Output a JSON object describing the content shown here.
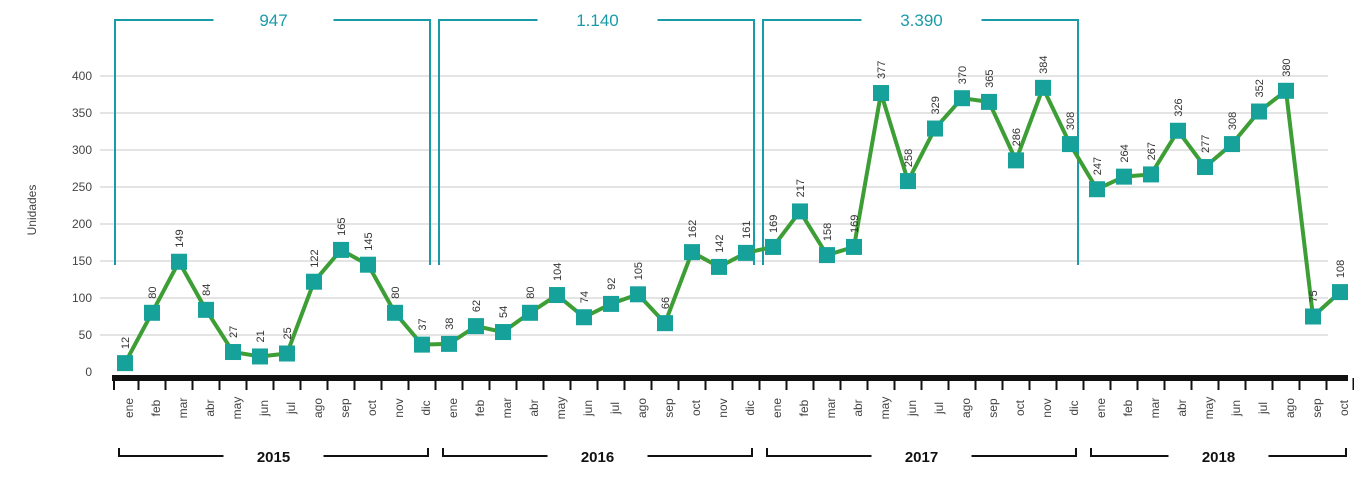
{
  "chart_data": {
    "type": "line",
    "y_label": "Unidades",
    "categories": [
      "ene",
      "feb",
      "mar",
      "abr",
      "may",
      "jun",
      "jul",
      "ago",
      "sep",
      "oct",
      "nov",
      "dic",
      "ene",
      "feb",
      "mar",
      "abr",
      "may",
      "jun",
      "jul",
      "ago",
      "sep",
      "oct",
      "nov",
      "dic",
      "ene",
      "feb",
      "mar",
      "abr",
      "may",
      "jun",
      "jul",
      "ago",
      "sep",
      "oct",
      "nov",
      "dic",
      "ene",
      "feb",
      "mar",
      "abr",
      "may",
      "jun",
      "jul",
      "ago",
      "sep",
      "oct"
    ],
    "series": [
      {
        "name": "Unidades",
        "color": "#3c9e35",
        "marker_color": "#16a29a",
        "values": [
          12,
          80,
          149,
          84,
          27,
          21,
          25,
          122,
          165,
          145,
          80,
          37,
          38,
          62,
          54,
          80,
          104,
          74,
          92,
          105,
          66,
          162,
          142,
          161,
          169,
          217,
          158,
          169,
          377,
          258,
          329,
          370,
          365,
          286,
          384,
          308,
          247,
          264,
          267,
          326,
          277,
          308,
          352,
          380,
          75,
          108
        ]
      }
    ],
    "groups": [
      {
        "label": "2015",
        "total": "947"
      },
      {
        "label": "2016",
        "total": "1.140"
      },
      {
        "label": "2017",
        "total": "3.390"
      },
      {
        "label": "2018"
      }
    ],
    "ylim": [
      0,
      400
    ],
    "yticks": [
      0,
      50,
      100,
      150,
      200,
      250,
      300,
      350,
      400
    ],
    "grid": true
  }
}
